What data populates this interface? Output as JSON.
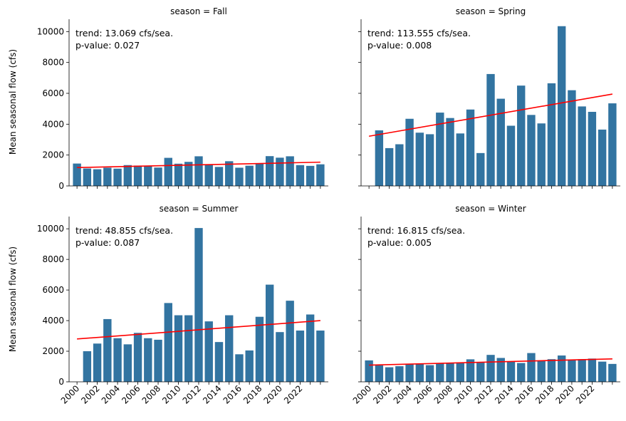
{
  "chart_data": {
    "type": "bar",
    "ylabel": "Mean seasonal flow (cfs)",
    "ylim": [
      0,
      10800
    ],
    "yticks": [
      0,
      2000,
      4000,
      6000,
      8000,
      10000
    ],
    "years": [
      2000,
      2001,
      2002,
      2003,
      2004,
      2005,
      2006,
      2007,
      2008,
      2009,
      2010,
      2011,
      2012,
      2013,
      2014,
      2015,
      2016,
      2017,
      2018,
      2019,
      2020,
      2021,
      2022,
      2023,
      2024
    ],
    "xticks": [
      2000,
      2002,
      2004,
      2006,
      2008,
      2010,
      2012,
      2014,
      2016,
      2018,
      2020,
      2022
    ],
    "bar_color": "#3274a1",
    "trend_color": "#ff0000",
    "panels": [
      {
        "title": "season = Fall",
        "trend_text": "trend: 13.069 cfs/sea.",
        "pvalue_text": "p-value: 0.027",
        "values": [
          1450,
          1130,
          1080,
          1180,
          1120,
          1350,
          1320,
          1280,
          1190,
          1820,
          1440,
          1560,
          1920,
          1390,
          1230,
          1600,
          1180,
          1310,
          1440,
          1930,
          1830,
          1920,
          1350,
          1300,
          1400
        ],
        "trend": {
          "x0": 2000,
          "y0": 1190,
          "x1": 2024,
          "y1": 1540
        }
      },
      {
        "title": "season = Spring",
        "trend_text": "trend: 113.555 cfs/sea.",
        "pvalue_text": "p-value: 0.008",
        "values": [
          null,
          3600,
          2450,
          2700,
          4350,
          3450,
          3350,
          4750,
          4400,
          3400,
          4950,
          2130,
          7250,
          5650,
          3900,
          6500,
          4600,
          4050,
          6650,
          10350,
          6200,
          5150,
          4800,
          3650,
          5350
        ],
        "trend": {
          "x0": 2000,
          "y0": 3220,
          "x1": 2024,
          "y1": 5950
        }
      },
      {
        "title": "season = Summer",
        "trend_text": "trend: 48.855 cfs/sea.",
        "pvalue_text": "p-value: 0.087",
        "values": [
          null,
          2000,
          2500,
          4100,
          2850,
          2450,
          3200,
          2850,
          2750,
          5150,
          4350,
          4350,
          10050,
          3950,
          2600,
          4350,
          1800,
          2050,
          4250,
          6350,
          3250,
          5300,
          3350,
          4400,
          3350
        ],
        "trend": {
          "x0": 2000,
          "y0": 2800,
          "x1": 2024,
          "y1": 4000
        }
      },
      {
        "title": "season = Winter",
        "trend_text": "trend: 16.815 cfs/sea.",
        "pvalue_text": "p-value: 0.005",
        "values": [
          1400,
          1080,
          950,
          1020,
          1150,
          1200,
          1090,
          1200,
          1230,
          1270,
          1470,
          1290,
          1760,
          1560,
          1330,
          1230,
          1880,
          1380,
          1480,
          1720,
          1460,
          1480,
          1520,
          1320,
          1170
        ],
        "trend": {
          "x0": 2000,
          "y0": 1090,
          "x1": 2024,
          "y1": 1500
        }
      }
    ]
  }
}
